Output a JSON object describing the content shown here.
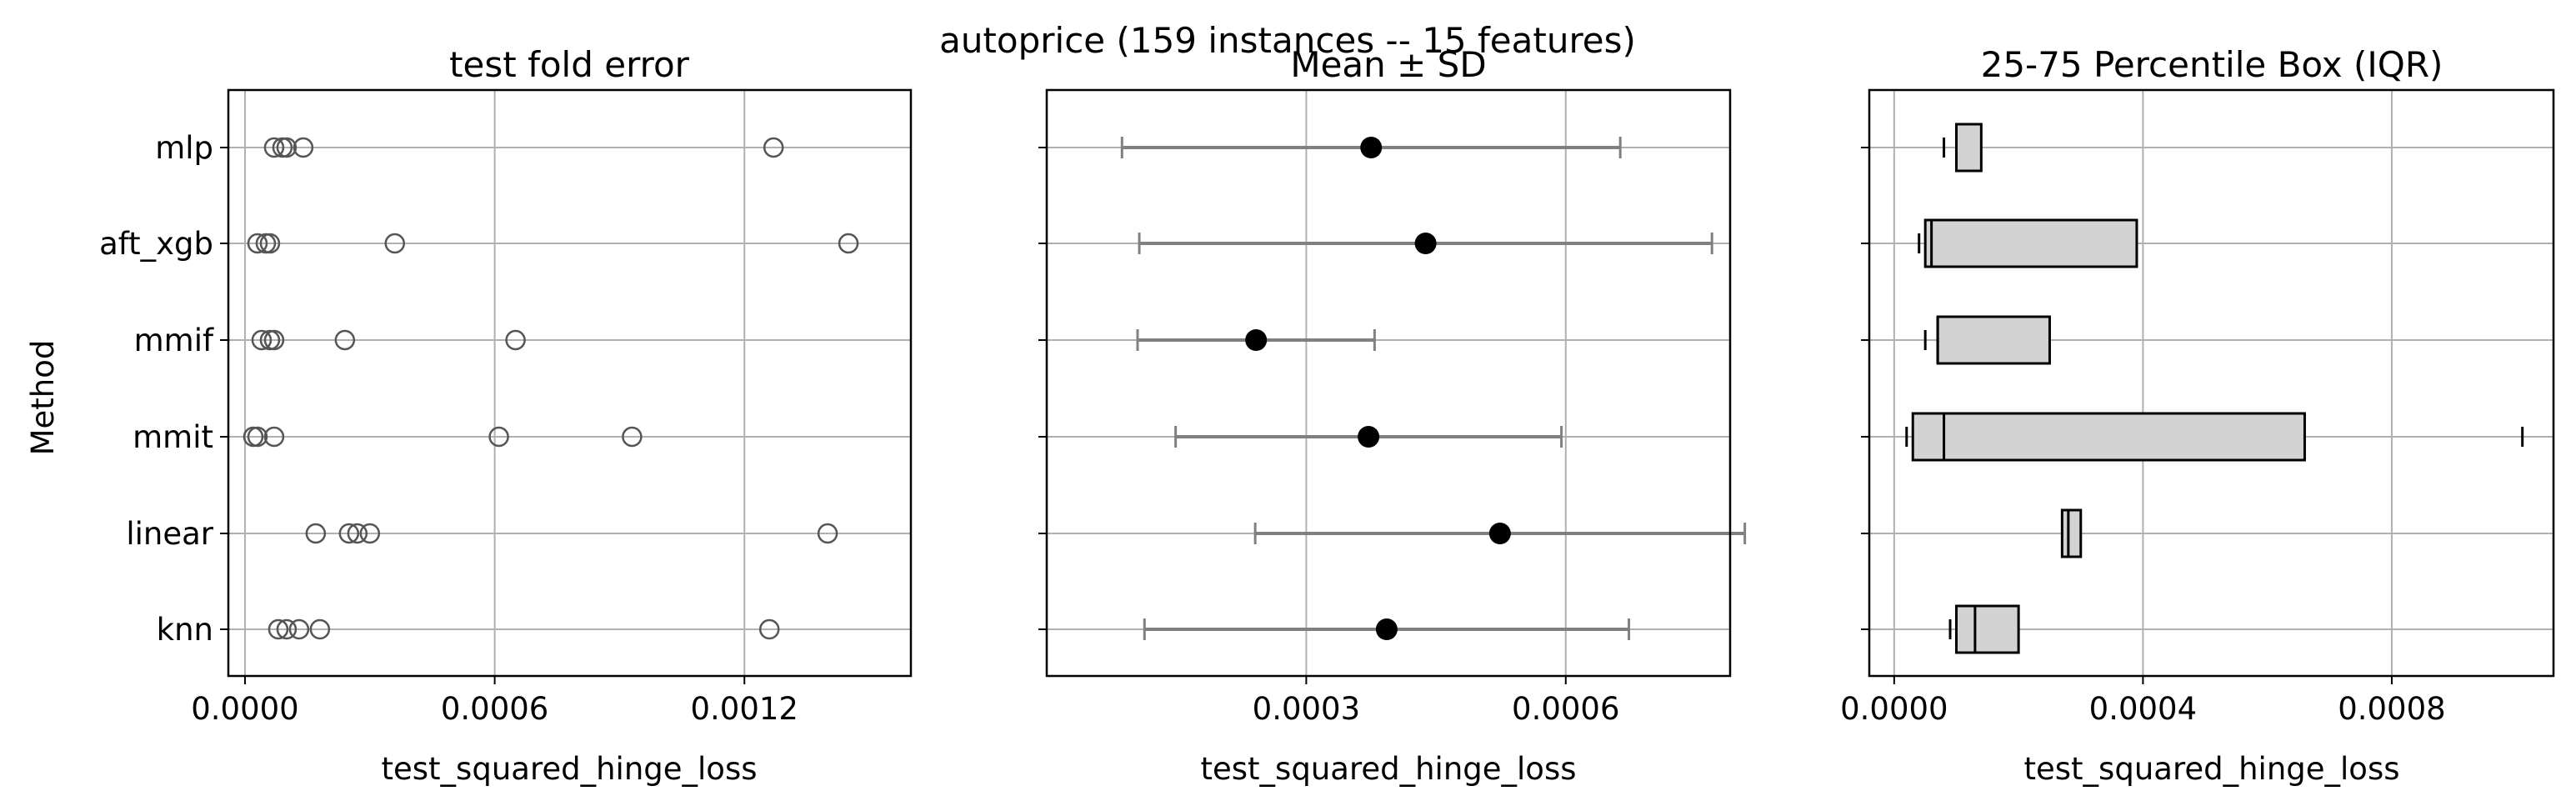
{
  "figure": {
    "suptitle": "autoprice (159 instances -- 15 features)",
    "ylabel": "Method"
  },
  "methods": [
    "mlp",
    "aft_xgb",
    "mmif",
    "mmit",
    "linear",
    "knn"
  ],
  "colors": {
    "grid": "#b0b0b0",
    "marker_edge": "#555555",
    "errorbar": "#808080",
    "mean_marker": "#000000",
    "box_fill": "#d3d3d3",
    "box_edge": "#000000"
  },
  "chart_data": [
    {
      "type": "scatter",
      "title": "test fold error",
      "xlabel": "test_squared_hinge_loss",
      "ylabel": "Method",
      "xlim": [
        -4e-05,
        0.0016
      ],
      "xticks": [
        0.0,
        0.0006,
        0.0012
      ],
      "xtick_labels": [
        "0.0000",
        "0.0006",
        "0.0012"
      ],
      "grid": true,
      "marker": "open-circle",
      "categories": [
        "mlp",
        "aft_xgb",
        "mmif",
        "mmit",
        "linear",
        "knn"
      ],
      "points": {
        "mlp": [
          7e-05,
          9e-05,
          0.0001,
          0.00014,
          0.00127
        ],
        "aft_xgb": [
          3e-05,
          5e-05,
          6e-05,
          0.00036,
          0.00145
        ],
        "mmif": [
          4e-05,
          6e-05,
          7e-05,
          0.00024,
          0.00065
        ],
        "mmit": [
          2e-05,
          3e-05,
          7e-05,
          0.00061,
          0.00093
        ],
        "linear": [
          0.00017,
          0.00025,
          0.00027,
          0.0003,
          0.0014
        ],
        "knn": [
          8e-05,
          0.0001,
          0.00013,
          0.00018,
          0.00126
        ]
      }
    },
    {
      "type": "errorbar",
      "title": "Mean ± SD",
      "xlabel": "test_squared_hinge_loss",
      "xlim": [
        0.0,
        0.00079
      ],
      "xticks": [
        0.0003,
        0.0006
      ],
      "xtick_labels": [
        "0.0003",
        "0.0006"
      ],
      "grid": true,
      "categories": [
        "mlp",
        "aft_xgb",
        "mmif",
        "mmit",
        "linear",
        "knn"
      ],
      "mean": [
        0.000375,
        0.000438,
        0.000242,
        0.000372,
        0.000524,
        0.000393
      ],
      "sd": [
        0.000288,
        0.000331,
        0.000137,
        0.000223,
        0.000283,
        0.00028
      ]
    },
    {
      "type": "box",
      "title": "25-75 Percentile Box (IQR)",
      "xlabel": "test_squared_hinge_loss",
      "xlim": [
        -4e-05,
        0.00106
      ],
      "xticks": [
        0.0,
        0.0004,
        0.0008
      ],
      "xtick_labels": [
        "0.0000",
        "0.0004",
        "0.0008"
      ],
      "grid": true,
      "categories": [
        "mlp",
        "aft_xgb",
        "mmif",
        "mmit",
        "linear",
        "knn"
      ],
      "boxes": [
        {
          "whislo": 8e-05,
          "q1": 0.0001,
          "med": 0.0001,
          "q3": 0.00014,
          "whishi": null
        },
        {
          "whislo": 4e-05,
          "q1": 5e-05,
          "med": 6e-05,
          "q3": 0.00039,
          "whishi": null
        },
        {
          "whislo": 5e-05,
          "q1": 7e-05,
          "med": 7e-05,
          "q3": 0.00025,
          "whishi": null
        },
        {
          "whislo": 2e-05,
          "q1": 3e-05,
          "med": 8e-05,
          "q3": 0.00066,
          "whishi": 0.00101
        },
        {
          "whislo": null,
          "q1": 0.00027,
          "med": 0.00028,
          "q3": 0.0003,
          "whishi": null
        },
        {
          "whislo": 9e-05,
          "q1": 0.0001,
          "med": 0.00013,
          "q3": 0.0002,
          "whishi": null
        }
      ]
    }
  ]
}
